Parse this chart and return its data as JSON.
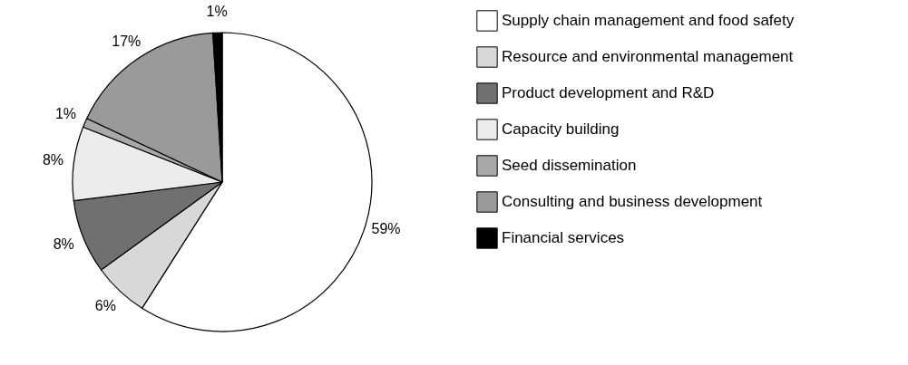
{
  "chart_data": {
    "type": "pie",
    "categories": [
      "Supply chain management and food safety",
      "Resource and environmental management",
      "Product development and R&D",
      "Capacity building",
      "Seed dissemination",
      "Consulting and business development",
      "Financial services"
    ],
    "values": [
      59,
      6,
      8,
      8,
      1,
      17,
      1
    ],
    "colors": [
      "#ffffff",
      "#d8d8d8",
      "#707070",
      "#ececec",
      "#a8a8a8",
      "#9a9a9a",
      "#000000"
    ],
    "value_labels": [
      "59%",
      "6%",
      "8%",
      "8%",
      "1%",
      "17%",
      "1%"
    ],
    "legend": "right"
  }
}
